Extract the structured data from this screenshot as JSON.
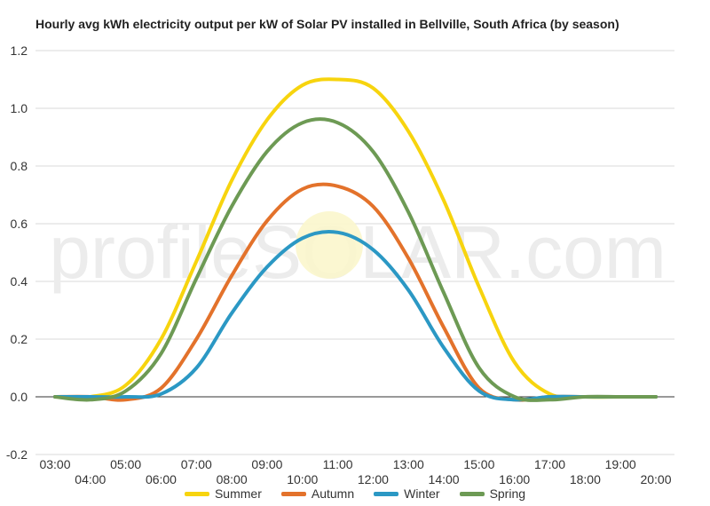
{
  "watermark": "profileSOLAR.com",
  "chart_data": {
    "type": "line",
    "title": "Hourly avg kWh electricity output per kW of Solar PV installed in Bellville, South Africa (by season)",
    "xlabel": "",
    "ylabel": "",
    "x_tick_labels": [
      "03:00",
      "04:00",
      "05:00",
      "06:00",
      "07:00",
      "08:00",
      "09:00",
      "10:00",
      "11:00",
      "12:00",
      "13:00",
      "14:00",
      "15:00",
      "16:00",
      "17:00",
      "18:00",
      "19:00",
      "20:00"
    ],
    "ylim": [
      -0.2,
      1.2
    ],
    "y_ticks": [
      "-0.2",
      "0.0",
      "0.2",
      "0.4",
      "0.6",
      "0.8",
      "1.0",
      "1.2"
    ],
    "grid": true,
    "legend_position": "bottom",
    "series": [
      {
        "name": "Summer",
        "color": "#f7d40e",
        "values": [
          0.0,
          0.0,
          0.04,
          0.2,
          0.47,
          0.75,
          0.96,
          1.08,
          1.1,
          1.07,
          0.92,
          0.68,
          0.38,
          0.12,
          0.01,
          0.0,
          0.0,
          0.0
        ]
      },
      {
        "name": "Autumn",
        "color": "#e3722b",
        "values": [
          0.0,
          0.0,
          -0.01,
          0.03,
          0.2,
          0.42,
          0.61,
          0.72,
          0.73,
          0.66,
          0.48,
          0.24,
          0.03,
          -0.01,
          0.0,
          0.0,
          0.0,
          0.0
        ]
      },
      {
        "name": "Winter",
        "color": "#2b98c4",
        "values": [
          0.0,
          0.0,
          0.0,
          0.01,
          0.1,
          0.29,
          0.45,
          0.55,
          0.57,
          0.51,
          0.37,
          0.17,
          0.02,
          -0.01,
          0.0,
          0.0,
          0.0,
          0.0
        ]
      },
      {
        "name": "Spring",
        "color": "#6d9a54",
        "values": [
          0.0,
          -0.01,
          0.02,
          0.15,
          0.41,
          0.66,
          0.85,
          0.95,
          0.95,
          0.85,
          0.64,
          0.36,
          0.1,
          0.0,
          -0.01,
          0.0,
          0.0,
          0.0
        ]
      }
    ]
  }
}
